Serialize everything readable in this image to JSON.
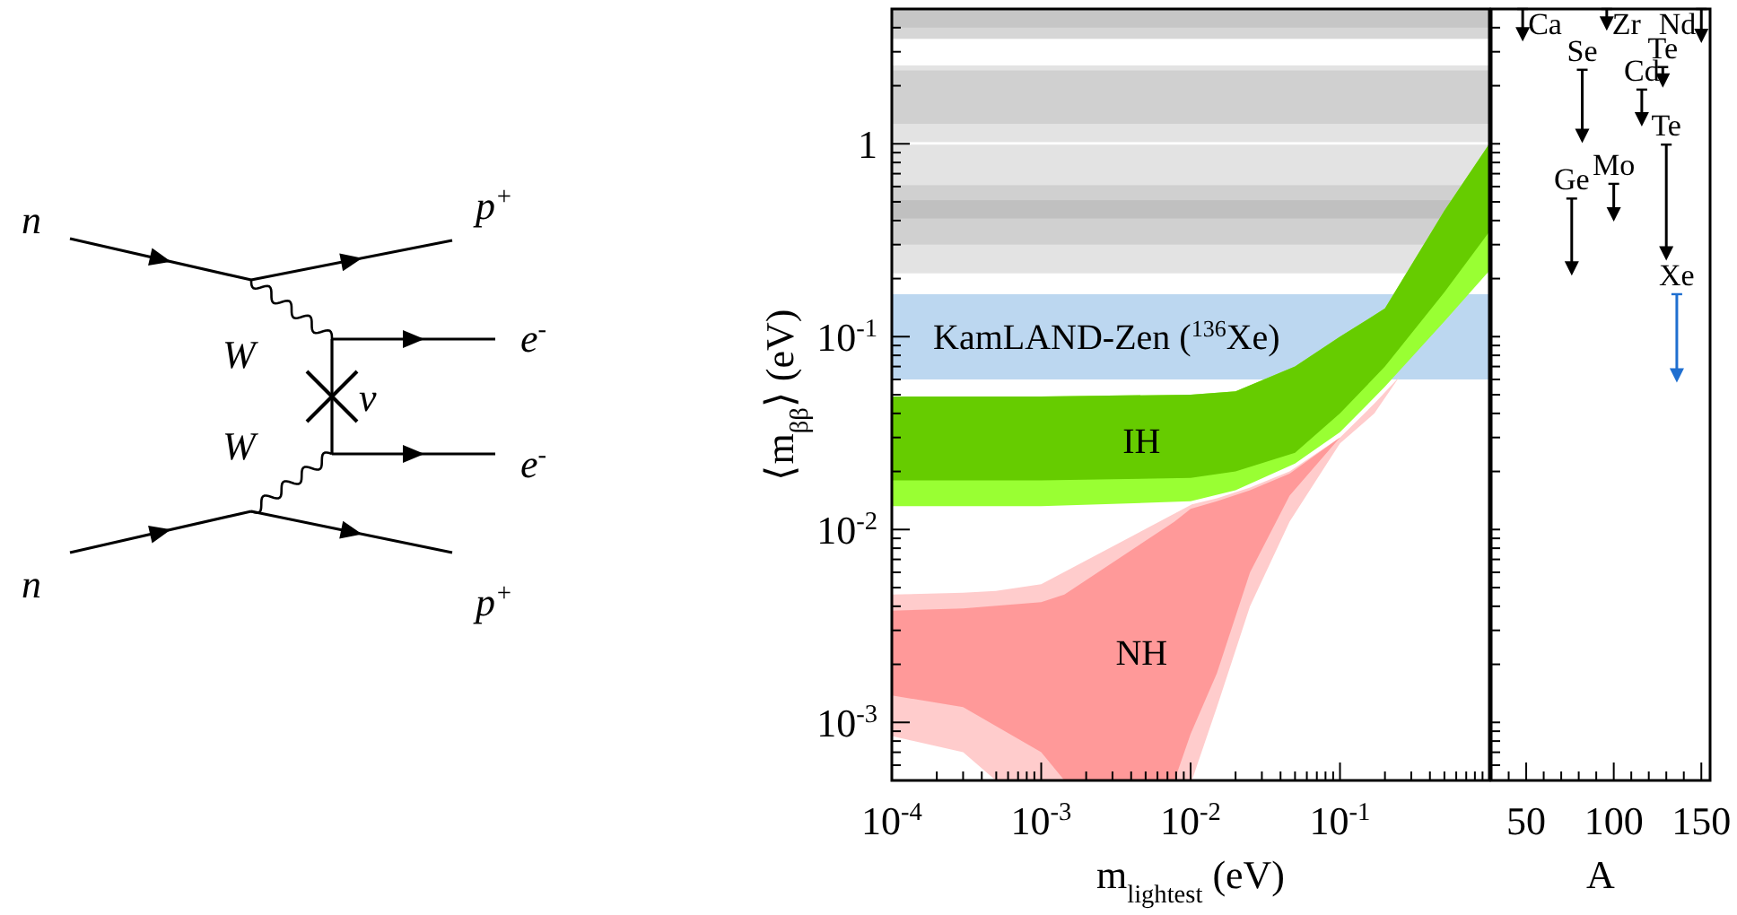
{
  "chart_data": [
    {
      "type": "other",
      "annotations": [
        "n",
        "p$^{+}$",
        "W",
        "e$^{-}$",
        "ν",
        "W",
        "e$^{-}$",
        "n",
        "p$^{+}$"
      ]
    },
    {
      "type": "area",
      "annotations": [
        "IH",
        "NH"
      ],
      "xlabel": "m$_{lightest}$ (eV)",
      "ylabel": "⟨m$_{ββ}$⟩ (eV)",
      "log": "xy",
      "xlim": [
        0.0001,
        1
      ],
      "ylim": [
        0.0005,
        5
      ],
      "xticks": [
        {
          "value": 0.0001,
          "label": "10$^{-4}$"
        },
        {
          "value": 0.0002,
          "label": null
        },
        {
          "value": 0.0003,
          "label": null
        },
        {
          "value": 0.0004,
          "label": null
        },
        {
          "value": 0.0005,
          "label": null
        },
        {
          "value": 0.0006,
          "label": null
        },
        {
          "value": 0.0007,
          "label": null
        },
        {
          "value": 0.0008,
          "label": null
        },
        {
          "value": 0.0009,
          "label": null
        },
        {
          "value": 0.001,
          "label": "10$^{-3}$"
        },
        {
          "value": 0.002,
          "label": null
        },
        {
          "value": 0.003,
          "label": null
        },
        {
          "value": 0.004,
          "label": null
        },
        {
          "value": 0.005,
          "label": null
        },
        {
          "value": 0.006,
          "label": null
        },
        {
          "value": 0.007,
          "label": null
        },
        {
          "value": 0.008,
          "label": null
        },
        {
          "value": 0.009,
          "label": null
        },
        {
          "value": 0.01,
          "label": "10$^{-2}$"
        },
        {
          "value": 0.02,
          "label": null
        },
        {
          "value": 0.03,
          "label": null
        },
        {
          "value": 0.04,
          "label": null
        },
        {
          "value": 0.05,
          "label": null
        },
        {
          "value": 0.06,
          "label": null
        },
        {
          "value": 0.07,
          "label": null
        },
        {
          "value": 0.08,
          "label": null
        },
        {
          "value": 0.09,
          "label": null
        },
        {
          "value": 0.1,
          "label": "10$^{-1}$"
        },
        {
          "value": 0.2,
          "label": null
        },
        {
          "value": 0.3,
          "label": null
        },
        {
          "value": 0.4,
          "label": null
        },
        {
          "value": 0.5,
          "label": null
        },
        {
          "value": 0.6,
          "label": null
        },
        {
          "value": 0.7,
          "label": null
        },
        {
          "value": 0.8,
          "label": null
        },
        {
          "value": 0.9,
          "label": null
        }
      ],
      "yticks": [
        {
          "value": 0.0006,
          "label": null
        },
        {
          "value": 0.0007,
          "label": null
        },
        {
          "value": 0.0008,
          "label": null
        },
        {
          "value": 0.0009,
          "label": null
        },
        {
          "value": 0.001,
          "label": "10$^{-3}$"
        },
        {
          "value": 0.002,
          "label": null
        },
        {
          "value": 0.003,
          "label": null
        },
        {
          "value": 0.004,
          "label": null
        },
        {
          "value": 0.005,
          "label": null
        },
        {
          "value": 0.006,
          "label": null
        },
        {
          "value": 0.007,
          "label": null
        },
        {
          "value": 0.008,
          "label": null
        },
        {
          "value": 0.009,
          "label": null
        },
        {
          "value": 0.01,
          "label": "10$^{-2}$"
        },
        {
          "value": 0.02,
          "label": null
        },
        {
          "value": 0.03,
          "label": null
        },
        {
          "value": 0.04,
          "label": null
        },
        {
          "value": 0.05,
          "label": null
        },
        {
          "value": 0.06,
          "label": null
        },
        {
          "value": 0.07,
          "label": null
        },
        {
          "value": 0.08,
          "label": null
        },
        {
          "value": 0.09,
          "label": null
        },
        {
          "value": 0.1,
          "label": "10$^{-1}$"
        },
        {
          "value": 0.2,
          "label": null
        },
        {
          "value": 0.3,
          "label": null
        },
        {
          "value": 0.4,
          "label": null
        },
        {
          "value": 0.5,
          "label": null
        },
        {
          "value": 0.6,
          "label": null
        },
        {
          "value": 0.7,
          "label": null
        },
        {
          "value": 0.8,
          "label": null
        },
        {
          "value": 0.9,
          "label": null
        },
        {
          "value": 1,
          "label": "1"
        },
        {
          "value": 2,
          "label": null
        },
        {
          "value": 3,
          "label": null
        },
        {
          "value": 4,
          "label": null
        }
      ],
      "bands": [
        {
          "axis": "y",
          "from": 3.5,
          "to": 5,
          "color": "#d6d6d6"
        },
        {
          "axis": "y",
          "from": 4.0,
          "to": 5,
          "color": "#c6c6c6"
        },
        {
          "axis": "y",
          "from": 1.02,
          "to": 2.55,
          "color": "#e3e3e3"
        },
        {
          "axis": "y",
          "from": 1.27,
          "to": 2.4,
          "color": "#d0d0d0"
        },
        {
          "axis": "y",
          "from": 0.213,
          "to": 0.99,
          "color": "#e3e3e3"
        },
        {
          "axis": "y",
          "from": 0.3,
          "to": 0.61,
          "color": "#d0d0d0"
        },
        {
          "axis": "y",
          "from": 0.41,
          "to": 0.51,
          "color": "#c0c0c0"
        },
        {
          "axis": "y",
          "from": 0.06,
          "to": 0.166,
          "color": "#bcd7f0",
          "label": "KamLAND-Zen ($^{136}$Xe)"
        }
      ],
      "series": [
        {
          "color": "#ffcccc",
          "x": [
            0.0001,
            0.0003,
            0.000497,
            0.001,
            0.0102,
            0.015,
            0.025,
            0.046,
            0.1,
            0.17,
            0.25
          ],
          "values": [
            null,
            null,
            null,
            null,
            null,
            null,
            null,
            null,
            null,
            null,
            null
          ],
          "upper": [
            0.0046,
            0.0047,
            0.0048,
            0.0052,
            0.0135,
            0.0145,
            0.0165,
            0.02,
            0.03,
            0.045,
            0.062
          ],
          "lower": [
            0.00085,
            0.0007,
            0.0005,
            0.0005,
            0.0005,
            0.0012,
            0.004,
            0.011,
            0.028,
            0.04,
            0.062
          ]
        },
        {
          "color": "#ff9999",
          "x": [
            0.0001,
            0.0003,
            0.001,
            0.00143,
            0.0078,
            0.01,
            0.015,
            0.025,
            0.046,
            0.1
          ],
          "values": [
            null,
            null,
            null,
            null,
            null,
            null,
            null,
            null,
            null,
            null
          ],
          "upper": [
            0.0038,
            0.0039,
            0.0042,
            0.0046,
            0.011,
            0.0128,
            0.014,
            0.016,
            0.0195,
            0.03
          ],
          "lower": [
            0.00138,
            0.0012,
            0.0007,
            0.0005,
            0.0005,
            0.00087,
            0.0018,
            0.006,
            0.015,
            0.03
          ]
        },
        {
          "color": "#99ff33",
          "x": [
            0.0001,
            0.001,
            0.01,
            0.02,
            0.05,
            0.1,
            0.2,
            0.5,
            1
          ],
          "values": [
            null,
            null,
            null,
            null,
            null,
            null,
            null,
            null,
            null
          ],
          "upper": [
            0.049,
            0.049,
            0.05,
            0.052,
            0.07,
            0.1,
            0.14,
            0.45,
            1.0
          ],
          "lower": [
            0.0132,
            0.0132,
            0.014,
            0.016,
            0.022,
            0.032,
            0.055,
            0.12,
            0.22
          ]
        },
        {
          "color": "#66cc00",
          "x": [
            0.0001,
            0.001,
            0.01,
            0.02,
            0.05,
            0.1,
            0.2,
            0.5,
            1
          ],
          "values": [
            null,
            null,
            null,
            null,
            null,
            null,
            null,
            null,
            null
          ],
          "upper": [
            0.049,
            0.049,
            0.05,
            0.052,
            0.07,
            0.1,
            0.14,
            0.45,
            1.0
          ],
          "lower": [
            0.018,
            0.018,
            0.0185,
            0.02,
            0.025,
            0.04,
            0.07,
            0.17,
            0.35
          ]
        }
      ]
    },
    {
      "type": "scatter",
      "xlabel": "A",
      "log": "y",
      "xlim": [
        30,
        155
      ],
      "ylim": [
        0.0005,
        5
      ],
      "tick_labels": "x",
      "marker": "triangle",
      "xticks": [
        {
          "value": 40,
          "label": null
        },
        50,
        {
          "value": 60,
          "label": null
        },
        {
          "value": 70,
          "label": null
        },
        {
          "value": 80,
          "label": null
        },
        {
          "value": 90,
          "label": null
        },
        100,
        {
          "value": 110,
          "label": null
        },
        {
          "value": 120,
          "label": null
        },
        {
          "value": 130,
          "label": null
        },
        {
          "value": 140,
          "label": null
        },
        150
      ],
      "yticks": [
        {
          "value": 0.0006,
          "label": null
        },
        {
          "value": 0.0007,
          "label": null
        },
        {
          "value": 0.0008,
          "label": null
        },
        {
          "value": 0.0009,
          "label": null
        },
        {
          "value": 0.001,
          "label": null
        },
        {
          "value": 0.002,
          "label": null
        },
        {
          "value": 0.003,
          "label": null
        },
        {
          "value": 0.004,
          "label": null
        },
        {
          "value": 0.005,
          "label": null
        },
        {
          "value": 0.006,
          "label": null
        },
        {
          "value": 0.007,
          "label": null
        },
        {
          "value": 0.008,
          "label": null
        },
        {
          "value": 0.009,
          "label": null
        },
        {
          "value": 0.01,
          "label": null
        },
        {
          "value": 0.02,
          "label": null
        },
        {
          "value": 0.03,
          "label": null
        },
        {
          "value": 0.04,
          "label": null
        },
        {
          "value": 0.05,
          "label": null
        },
        {
          "value": 0.06,
          "label": null
        },
        {
          "value": 0.07,
          "label": null
        },
        {
          "value": 0.08,
          "label": null
        },
        {
          "value": 0.09,
          "label": null
        },
        {
          "value": 0.1,
          "label": null
        },
        {
          "value": 0.2,
          "label": null
        },
        {
          "value": 0.3,
          "label": null
        },
        {
          "value": 0.4,
          "label": null
        },
        {
          "value": 0.5,
          "label": null
        },
        {
          "value": 0.6,
          "label": null
        },
        {
          "value": 0.7,
          "label": null
        },
        {
          "value": 0.8,
          "label": null
        },
        {
          "value": 0.9,
          "label": null
        },
        {
          "value": 1,
          "label": null
        },
        {
          "value": 2,
          "label": null
        },
        {
          "value": 3,
          "label": null
        },
        {
          "value": 4,
          "label": null
        }
      ],
      "series": [
        {
          "color": "#000000",
          "x": [
            48,
            96,
            150,
            82,
            128,
            116,
            130,
            100,
            76
          ],
          "values": [
            3.69,
            4.2,
            3.63,
            1.1,
            2.13,
            1.34,
            0.27,
            0.43,
            0.226
          ],
          "errors": [
            [
              3.69,
              5
            ],
            [
              4.2,
              5
            ],
            [
              3.63,
              5
            ],
            [
              1.1,
              2.42
            ],
            [
              2.13,
              2.5
            ],
            [
              1.34,
              1.91
            ],
            [
              0.27,
              0.99
            ],
            [
              0.43,
              0.62
            ],
            [
              0.226,
              0.52
            ]
          ]
        },
        {
          "color": "#1f6fd0",
          "x": [
            136
          ],
          "values": [
            0.063
          ],
          "errors": [
            [
              0.063,
              0.166
            ]
          ]
        }
      ],
      "annotations": [
        {
          "text": "Ca",
          "x": 48,
          "y": 5
        },
        {
          "text": "Zr",
          "x": 96,
          "y": 5
        },
        {
          "text": "Nd",
          "x": 150,
          "y": 5
        },
        {
          "text": "Se",
          "x": 82,
          "y": 2.42
        },
        {
          "text": "Te",
          "x": 128,
          "y": 2.5
        },
        {
          "text": "Cd",
          "x": 116,
          "y": 1.91
        },
        {
          "text": "Te",
          "x": 130,
          "y": 0.99
        },
        {
          "text": "Mo",
          "x": 100,
          "y": 0.62
        },
        {
          "text": "Ge",
          "x": 76,
          "y": 0.52
        },
        {
          "text": "Xe",
          "x": 136,
          "y": 0.166
        }
      ]
    }
  ]
}
